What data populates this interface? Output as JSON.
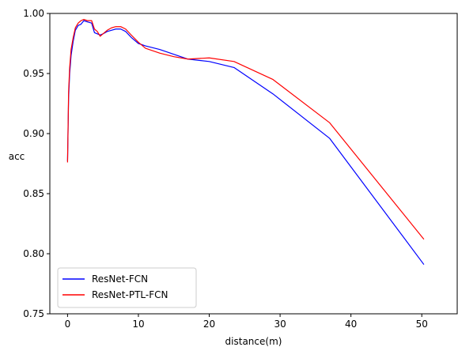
{
  "chart_data": {
    "type": "line",
    "title": "",
    "xlabel": "distance(m)",
    "ylabel": "acc",
    "xlim": [
      -2.5,
      55
    ],
    "ylim": [
      0.75,
      1.0
    ],
    "xticks": [
      {
        "value": 0,
        "label": "0"
      },
      {
        "value": 10,
        "label": "10"
      },
      {
        "value": 20,
        "label": "20"
      },
      {
        "value": 30,
        "label": "30"
      },
      {
        "value": 40,
        "label": "40"
      },
      {
        "value": 50,
        "label": "50"
      }
    ],
    "yticks": [
      {
        "value": 0.75,
        "label": "0.75"
      },
      {
        "value": 0.8,
        "label": "0.80"
      },
      {
        "value": 0.85,
        "label": "0.85"
      },
      {
        "value": 0.9,
        "label": "0.90"
      },
      {
        "value": 0.95,
        "label": "0.95"
      },
      {
        "value": 1.0,
        "label": "1.00"
      }
    ],
    "grid": false,
    "legend_position": "lower-left",
    "series": [
      {
        "name": "ResNet-FCN",
        "color": "#0000ff",
        "x": [
          0,
          0.15,
          0.3,
          0.5,
          0.8,
          1.1,
          1.5,
          1.9,
          2.3,
          2.8,
          3.4,
          3.8,
          4.2,
          4.6,
          5.0,
          5.6,
          6.2,
          6.8,
          7.5,
          8.2,
          9.0,
          10.0,
          11.0,
          13.0,
          15.0,
          17.0,
          20.0,
          23.5,
          29.0,
          37.0,
          50.3
        ],
        "y": [
          0.877,
          0.93,
          0.95,
          0.965,
          0.977,
          0.986,
          0.99,
          0.991,
          0.994,
          0.993,
          0.992,
          0.984,
          0.983,
          0.982,
          0.983,
          0.985,
          0.986,
          0.987,
          0.987,
          0.985,
          0.98,
          0.975,
          0.973,
          0.97,
          0.966,
          0.962,
          0.96,
          0.955,
          0.933,
          0.896,
          0.791
        ]
      },
      {
        "name": "ResNet-PTL-FCN",
        "color": "#ff0000",
        "x": [
          0,
          0.15,
          0.3,
          0.5,
          0.8,
          1.1,
          1.5,
          1.9,
          2.3,
          2.8,
          3.4,
          3.8,
          4.2,
          4.6,
          5.0,
          5.6,
          6.2,
          6.8,
          7.5,
          8.2,
          9.0,
          10.0,
          11.0,
          13.0,
          15.0,
          17.0,
          20.0,
          23.5,
          29.0,
          37.0,
          50.3
        ],
        "y": [
          0.876,
          0.935,
          0.955,
          0.97,
          0.98,
          0.988,
          0.992,
          0.994,
          0.995,
          0.994,
          0.994,
          0.987,
          0.985,
          0.981,
          0.983,
          0.986,
          0.988,
          0.989,
          0.989,
          0.987,
          0.982,
          0.976,
          0.971,
          0.967,
          0.964,
          0.962,
          0.963,
          0.96,
          0.945,
          0.909,
          0.812
        ]
      }
    ]
  }
}
